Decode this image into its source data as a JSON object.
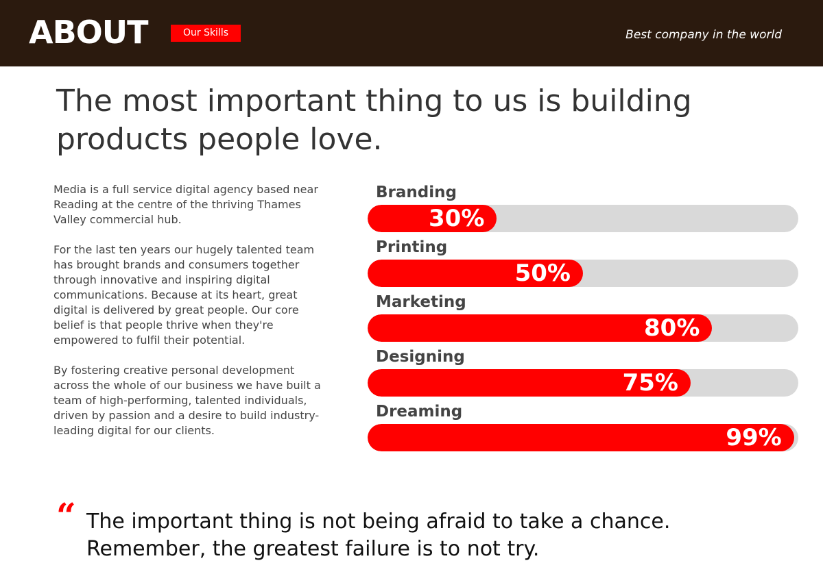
{
  "header": {
    "title": "ABOUT",
    "badge": "Our Skills",
    "tagline": "Best company in the world"
  },
  "headline": "The most important thing to us is building products people love.",
  "body": {
    "paragraphs": [
      "Media is a full service digital agency based near Reading at the centre of the thriving Thames Valley commercial hub.",
      "For the last ten years our hugely talented team has brought brands and consumers together through innovative and inspiring digital communications. Because at its heart, great digital is delivered by great people. Our core belief is that people thrive when they're empowered to fulfil their potential.",
      "By fostering creative personal development across the whole of our business we have built a team of high-performing, talented individuals, driven by passion and a desire to build industry-leading digital for our clients."
    ]
  },
  "skills": [
    {
      "label": "Branding",
      "percent": "30%",
      "value": 30
    },
    {
      "label": "Printing",
      "percent": "50%",
      "value": 50
    },
    {
      "label": "Marketing",
      "percent": "80%",
      "value": 80
    },
    {
      "label": "Designing",
      "percent": "75%",
      "value": 75
    },
    {
      "label": "Dreaming",
      "percent": "99%",
      "value": 99
    }
  ],
  "quote": {
    "mark": "“",
    "text": "The important thing is not being afraid to take a chance. Remember, the greatest failure is to not try."
  },
  "colors": {
    "header_bg": "#2b1a0e",
    "accent": "#ff0000",
    "track": "#d9d9d9"
  }
}
